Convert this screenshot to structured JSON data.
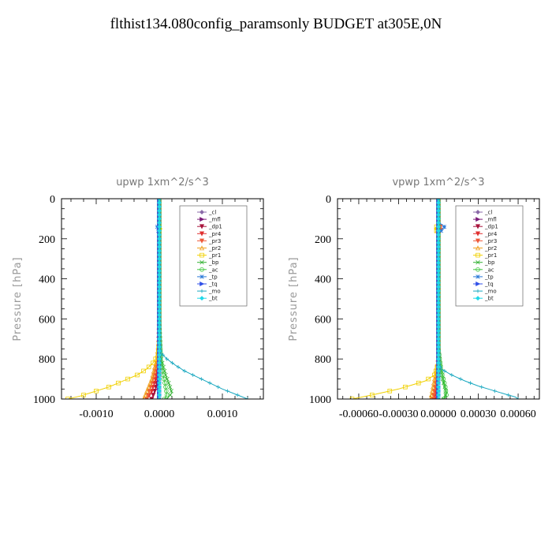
{
  "title": "flthist134.080config_paramsonly  BUDGET at305E,0N",
  "legend_names": [
    "_cl",
    "_mfl",
    "_dp1",
    "_pr4",
    "_pr3",
    "_pr2",
    "_pr1",
    "_bp",
    "_ac",
    "_tp",
    "_tq",
    "_mo",
    "_bt"
  ],
  "series_colors": [
    "#8a6aa8",
    "#7a1a78",
    "#a8143c",
    "#e03030",
    "#ee5a3a",
    "#f0a020",
    "#f0d000",
    "#30b030",
    "#40c840",
    "#2878d8",
    "#3050e8",
    "#1aa8c0",
    "#20d8e8"
  ],
  "chart_data": [
    {
      "type": "line",
      "title": "upwp   1xm^2/s^3",
      "ylabel": "Pressure [hPa]",
      "xlabel": "",
      "xlim": [
        -0.00155,
        0.00165
      ],
      "ylim": [
        1000,
        0
      ],
      "xticks": [
        -0.001,
        0.0,
        0.001
      ],
      "xtick_labels": [
        "-0.0010",
        "0.0000",
        "0.0010"
      ],
      "yticks": [
        0,
        200,
        400,
        600,
        800,
        1000
      ],
      "ytick_labels": [
        "0",
        "200",
        "400",
        "600",
        "800",
        "1000"
      ],
      "legend_position": "top-right",
      "grid": false,
      "series": [
        {
          "name": "_cl",
          "points": [
            [
              0,
              0
            ],
            [
              0,
              150
            ],
            [
              0,
              500
            ],
            [
              0,
              800
            ],
            [
              0,
              1000
            ]
          ]
        },
        {
          "name": "_mfl",
          "points": [
            [
              0,
              0
            ],
            [
              0,
              140
            ],
            [
              0,
              150
            ],
            [
              0,
              160
            ],
            [
              0,
              500
            ],
            [
              0,
              800
            ],
            [
              0,
              1000
            ]
          ]
        },
        {
          "name": "_dp1",
          "points": [
            [
              0,
              0
            ],
            [
              0,
              500
            ],
            [
              0,
              800
            ],
            [
              -2e-05,
              880
            ],
            [
              -6e-05,
              950
            ],
            [
              -0.00012,
              1000
            ]
          ]
        },
        {
          "name": "_pr4",
          "points": [
            [
              0,
              0
            ],
            [
              0,
              600
            ],
            [
              -2e-05,
              820
            ],
            [
              -6e-05,
              900
            ],
            [
              -0.00012,
              960
            ],
            [
              -0.0002,
              1000
            ]
          ]
        },
        {
          "name": "_pr3",
          "points": [
            [
              0,
              0
            ],
            [
              0,
              140
            ],
            [
              1e-05,
              150
            ],
            [
              0,
              160
            ],
            [
              0,
              700
            ],
            [
              -3e-05,
              800
            ],
            [
              -0.0001,
              900
            ],
            [
              -0.0002,
              1000
            ]
          ]
        },
        {
          "name": "_pr2",
          "points": [
            [
              0,
              0
            ],
            [
              0,
              140
            ],
            [
              4e-05,
              150
            ],
            [
              0,
              160
            ],
            [
              0,
              700
            ],
            [
              -4e-05,
              800
            ],
            [
              -0.00012,
              900
            ],
            [
              -0.00025,
              1000
            ]
          ]
        },
        {
          "name": "_pr1",
          "points": [
            [
              0,
              0
            ],
            [
              0,
              140
            ],
            [
              4e-05,
              150
            ],
            [
              0,
              160
            ],
            [
              0,
              700
            ],
            [
              -2e-05,
              780
            ],
            [
              -0.0001,
              820
            ],
            [
              -0.0002,
              850
            ],
            [
              -0.00035,
              880
            ],
            [
              -0.0005,
              900
            ],
            [
              -0.00065,
              920
            ],
            [
              -0.0008,
              940
            ],
            [
              -0.00095,
              955
            ],
            [
              -0.0011,
              970
            ],
            [
              -0.00125,
              985
            ],
            [
              -0.00145,
              1000
            ]
          ]
        },
        {
          "name": "_bp",
          "points": [
            [
              0,
              0
            ],
            [
              0,
              600
            ],
            [
              3e-05,
              800
            ],
            [
              0.0001,
              880
            ],
            [
              0.00016,
              930
            ],
            [
              0.0002,
              970
            ],
            [
              0.00012,
              1000
            ]
          ]
        },
        {
          "name": "_ac",
          "points": [
            [
              0,
              0
            ],
            [
              0,
              650
            ],
            [
              2e-05,
              800
            ],
            [
              6e-05,
              880
            ],
            [
              0.0001,
              940
            ],
            [
              0.00012,
              980
            ],
            [
              8e-05,
              1000
            ]
          ]
        },
        {
          "name": "_tp",
          "points": [
            [
              0,
              0
            ],
            [
              0,
              130
            ],
            [
              -3e-05,
              140
            ],
            [
              -3e-05,
              155
            ],
            [
              0,
              165
            ],
            [
              0,
              500
            ],
            [
              0,
              800
            ],
            [
              0,
              1000
            ]
          ]
        },
        {
          "name": "_tq",
          "points": [
            [
              0,
              0
            ],
            [
              0,
              1000
            ]
          ]
        },
        {
          "name": "_mo",
          "points": [
            [
              0,
              0
            ],
            [
              0,
              700
            ],
            [
              3e-05,
              770
            ],
            [
              0.00012,
              800
            ],
            [
              0.00025,
              830
            ],
            [
              0.0004,
              860
            ],
            [
              0.0006,
              890
            ],
            [
              0.0008,
              920
            ],
            [
              0.001,
              950
            ],
            [
              0.0012,
              975
            ],
            [
              0.0014,
              1000
            ]
          ]
        },
        {
          "name": "_bt",
          "points": [
            [
              0,
              0
            ],
            [
              0,
              1000
            ]
          ]
        }
      ]
    },
    {
      "type": "line",
      "title": "vpwp   1xm^2/s^3",
      "ylabel": "Pressure [hPa]",
      "xlabel": "",
      "xlim": [
        -0.00076,
        0.00076
      ],
      "ylim": [
        1000,
        0
      ],
      "xticks": [
        -0.0006,
        -0.0003,
        0.0,
        0.0003,
        0.0006
      ],
      "xtick_labels": [
        "-0.00060",
        "-0.00030",
        "0.00000",
        "0.00030",
        "0.00060"
      ],
      "yticks": [
        0,
        200,
        400,
        600,
        800,
        1000
      ],
      "ytick_labels": [
        "0",
        "200",
        "400",
        "600",
        "800",
        "1000"
      ],
      "legend_position": "top-right",
      "grid": false,
      "series": [
        {
          "name": "_cl",
          "points": [
            [
              0,
              0
            ],
            [
              0,
              150
            ],
            [
              0,
              500
            ],
            [
              0,
              800
            ],
            [
              0,
              1000
            ]
          ]
        },
        {
          "name": "_mfl",
          "points": [
            [
              0,
              0
            ],
            [
              0,
              140
            ],
            [
              0,
              150
            ],
            [
              0,
              160
            ],
            [
              0,
              500
            ],
            [
              0,
              1000
            ]
          ]
        },
        {
          "name": "_dp1",
          "points": [
            [
              0,
              0
            ],
            [
              0,
              500
            ],
            [
              0,
              850
            ],
            [
              -1e-05,
              920
            ],
            [
              -3e-05,
              1000
            ]
          ]
        },
        {
          "name": "_pr4",
          "points": [
            [
              0,
              0
            ],
            [
              0,
              130
            ],
            [
              2e-05,
              150
            ],
            [
              0,
              170
            ],
            [
              0,
              800
            ],
            [
              -1e-05,
              900
            ],
            [
              -3e-05,
              1000
            ]
          ]
        },
        {
          "name": "_pr3",
          "points": [
            [
              0,
              0
            ],
            [
              0,
              130
            ],
            [
              3e-05,
              150
            ],
            [
              0,
              170
            ],
            [
              0,
              800
            ],
            [
              -2e-05,
              900
            ],
            [
              -4e-05,
              1000
            ]
          ]
        },
        {
          "name": "_pr2",
          "points": [
            [
              0,
              0
            ],
            [
              0,
              130
            ],
            [
              -2e-05,
              150
            ],
            [
              0,
              170
            ],
            [
              0,
              800
            ],
            [
              -3e-05,
              900
            ],
            [
              -6e-05,
              1000
            ]
          ]
        },
        {
          "name": "_pr1",
          "points": [
            [
              0,
              0
            ],
            [
              0,
              130
            ],
            [
              -3e-05,
              150
            ],
            [
              0,
              170
            ],
            [
              0,
              820
            ],
            [
              -3e-05,
              880
            ],
            [
              -0.0001,
              910
            ],
            [
              -0.0002,
              930
            ],
            [
              -0.0003,
              950
            ],
            [
              -0.0004,
              965
            ],
            [
              -0.0005,
              980
            ],
            [
              -0.00065,
              1000
            ]
          ]
        },
        {
          "name": "_bp",
          "points": [
            [
              0,
              0
            ],
            [
              0,
              750
            ],
            [
              2e-05,
              850
            ],
            [
              4e-05,
              920
            ],
            [
              6e-05,
              970
            ],
            [
              4e-05,
              1000
            ]
          ]
        },
        {
          "name": "_ac",
          "points": [
            [
              0,
              0
            ],
            [
              0,
              750
            ],
            [
              2e-05,
              860
            ],
            [
              5e-05,
              930
            ],
            [
              6e-05,
              980
            ],
            [
              4e-05,
              1000
            ]
          ]
        },
        {
          "name": "_tp",
          "points": [
            [
              0,
              0
            ],
            [
              0,
              120
            ],
            [
              3e-05,
              130
            ],
            [
              5e-05,
              145
            ],
            [
              2e-05,
              160
            ],
            [
              0,
              175
            ],
            [
              0,
              800
            ],
            [
              0,
              1000
            ]
          ]
        },
        {
          "name": "_tq",
          "points": [
            [
              0,
              0
            ],
            [
              0,
              1000
            ]
          ]
        },
        {
          "name": "_mo",
          "points": [
            [
              0,
              0
            ],
            [
              0,
              800
            ],
            [
              2e-05,
              850
            ],
            [
              0.0001,
              880
            ],
            [
              0.0002,
              910
            ],
            [
              0.0003,
              935
            ],
            [
              0.0004,
              955
            ],
            [
              0.0005,
              975
            ],
            [
              0.00058,
              990
            ],
            [
              0.0006,
              1000
            ]
          ]
        },
        {
          "name": "_bt",
          "points": [
            [
              0,
              0
            ],
            [
              0,
              1000
            ]
          ]
        }
      ]
    }
  ]
}
